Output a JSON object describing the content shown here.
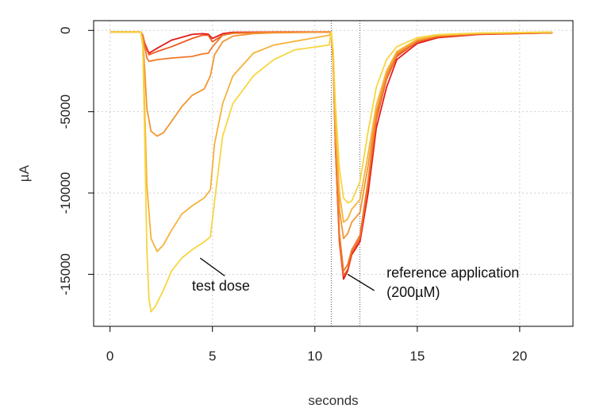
{
  "chart_data": {
    "type": "line",
    "title": "",
    "xlabel": "seconds",
    "ylabel": "µA",
    "xlim": [
      -0.8,
      22.6
    ],
    "ylim": [
      -18200,
      600
    ],
    "xticks": [
      0,
      5,
      10,
      15,
      20
    ],
    "xtick_labels": [
      "0",
      "5",
      "10",
      "15",
      "20"
    ],
    "yticks": [
      0,
      -5000,
      -10000,
      -15000
    ],
    "ytick_labels": [
      "0",
      "-5000",
      "-10000",
      "-15000"
    ],
    "grid": true,
    "vlines": [
      10.8,
      12.2
    ],
    "annotations": [
      {
        "text": "test dose",
        "x": 4.0,
        "y": -16000,
        "line_from": [
          4.4,
          -14000
        ],
        "line_to": [
          5.6,
          -15100
        ]
      },
      {
        "text": "reference application",
        "x": 13.5,
        "y": -15200,
        "line_from": [
          11.6,
          -15000
        ],
        "line_to": [
          12.9,
          -16000
        ]
      },
      {
        "text": "(200µM)",
        "x": 13.5,
        "y": -16400
      }
    ],
    "series": [
      {
        "color": "#e41a1c",
        "x": [
          0,
          1.5,
          1.6,
          1.7,
          1.9,
          2.3,
          3,
          4,
          4.5,
          4.8,
          5.0,
          5.5,
          6,
          8,
          10.7,
          10.8,
          10.9,
          11,
          11.2,
          11.4,
          11.6,
          11.8,
          12.2,
          12.6,
          13,
          13.5,
          14,
          15,
          16,
          18,
          21.6
        ],
        "y": [
          -100,
          -100,
          -300,
          -800,
          -1400,
          -1100,
          -600,
          -250,
          -200,
          -230,
          -500,
          -200,
          -120,
          -100,
          -100,
          -100,
          -2000,
          -7000,
          -13000,
          -15300,
          -14800,
          -13800,
          -13000,
          -10000,
          -6000,
          -3500,
          -1800,
          -800,
          -450,
          -250,
          -150
        ]
      },
      {
        "color": "#ee5a1e",
        "x": [
          0,
          1.5,
          1.6,
          1.7,
          1.9,
          2.3,
          3,
          4,
          4.5,
          4.8,
          5.0,
          5.5,
          6,
          8,
          10.7,
          10.8,
          10.9,
          11,
          11.2,
          11.4,
          11.6,
          11.8,
          12.2,
          12.6,
          13,
          13.5,
          14,
          15,
          16,
          18,
          21.6
        ],
        "y": [
          -100,
          -100,
          -300,
          -900,
          -1500,
          -1300,
          -1000,
          -500,
          -300,
          -300,
          -700,
          -300,
          -150,
          -100,
          -100,
          -100,
          -2000,
          -7000,
          -13000,
          -15100,
          -14700,
          -13700,
          -12800,
          -9500,
          -5500,
          -3000,
          -1600,
          -700,
          -400,
          -230,
          -150
        ]
      },
      {
        "color": "#f0782a",
        "x": [
          0,
          1.5,
          1.6,
          1.7,
          1.8,
          1.9,
          2.3,
          3,
          4,
          4.5,
          4.8,
          5.0,
          5.5,
          6,
          8,
          10.7,
          10.8,
          10.9,
          11,
          11.2,
          11.4,
          11.6,
          11.8,
          12.2,
          12.6,
          13,
          13.5,
          14,
          15,
          16,
          18,
          21.6
        ],
        "y": [
          -100,
          -100,
          -300,
          -1000,
          -1700,
          -1900,
          -1800,
          -1700,
          -1600,
          -1450,
          -1400,
          -1000,
          -300,
          -180,
          -120,
          -100,
          -100,
          -1900,
          -6500,
          -12500,
          -14800,
          -14400,
          -13500,
          -12600,
          -9200,
          -5300,
          -2900,
          -1500,
          -650,
          -350,
          -200,
          -130
        ]
      },
      {
        "color": "#f39532",
        "x": [
          0,
          1.5,
          1.6,
          1.7,
          1.8,
          2.0,
          2.3,
          2.6,
          3,
          3.5,
          4,
          4.6,
          4.9,
          5.1,
          5.5,
          6,
          7,
          8,
          10.7,
          10.8,
          10.9,
          11,
          11.2,
          11.4,
          11.6,
          11.8,
          12.2,
          12.6,
          13,
          13.5,
          14,
          15,
          16,
          18,
          21.6
        ],
        "y": [
          -100,
          -100,
          -500,
          -2500,
          -4800,
          -6200,
          -6500,
          -6300,
          -5600,
          -4700,
          -4000,
          -3600,
          -2800,
          -1500,
          -700,
          -350,
          -200,
          -150,
          -100,
          -100,
          -1700,
          -6000,
          -11000,
          -12800,
          -12500,
          -11800,
          -11200,
          -8300,
          -5000,
          -2700,
          -1400,
          -600,
          -320,
          -180,
          -120
        ]
      },
      {
        "color": "#f6b23a",
        "x": [
          0,
          1.5,
          1.6,
          1.7,
          1.8,
          2.0,
          2.3,
          2.6,
          3,
          3.5,
          4,
          4.6,
          4.9,
          5.1,
          5.5,
          6,
          7,
          8,
          10.7,
          10.8,
          10.9,
          11,
          11.2,
          11.4,
          11.6,
          11.8,
          12.2,
          12.6,
          13,
          13.5,
          14,
          15,
          16,
          18,
          21.6
        ],
        "y": [
          -100,
          -100,
          -700,
          -5000,
          -9500,
          -12800,
          -13600,
          -13200,
          -12300,
          -11300,
          -10800,
          -10300,
          -9800,
          -7000,
          -4500,
          -2800,
          -1400,
          -900,
          -300,
          -100,
          -1600,
          -5800,
          -10000,
          -11800,
          -11600,
          -11000,
          -10400,
          -7600,
          -4600,
          -2500,
          -1300,
          -550,
          -300,
          -170,
          -110
        ]
      },
      {
        "color": "#f6d63f",
        "x": [
          0,
          1.5,
          1.6,
          1.7,
          1.8,
          1.9,
          2.0,
          2.2,
          2.6,
          3,
          3.5,
          4,
          4.6,
          4.9,
          5.2,
          5.5,
          6,
          7,
          8,
          9,
          10.7,
          10.8,
          10.9,
          11,
          11.2,
          11.4,
          11.6,
          11.8,
          12.2,
          12.6,
          13,
          13.5,
          14,
          15,
          16,
          18,
          21.6
        ],
        "y": [
          -100,
          -100,
          -1000,
          -7000,
          -13500,
          -16500,
          -17300,
          -17000,
          -16000,
          -14800,
          -14000,
          -13500,
          -13000,
          -12700,
          -9500,
          -6500,
          -4500,
          -2800,
          -1800,
          -1200,
          -900,
          -100,
          -1300,
          -4500,
          -8500,
          -10300,
          -10600,
          -10500,
          -9300,
          -6200,
          -3500,
          -1800,
          -1000,
          -450,
          -260,
          -160,
          -100
        ]
      }
    ]
  }
}
